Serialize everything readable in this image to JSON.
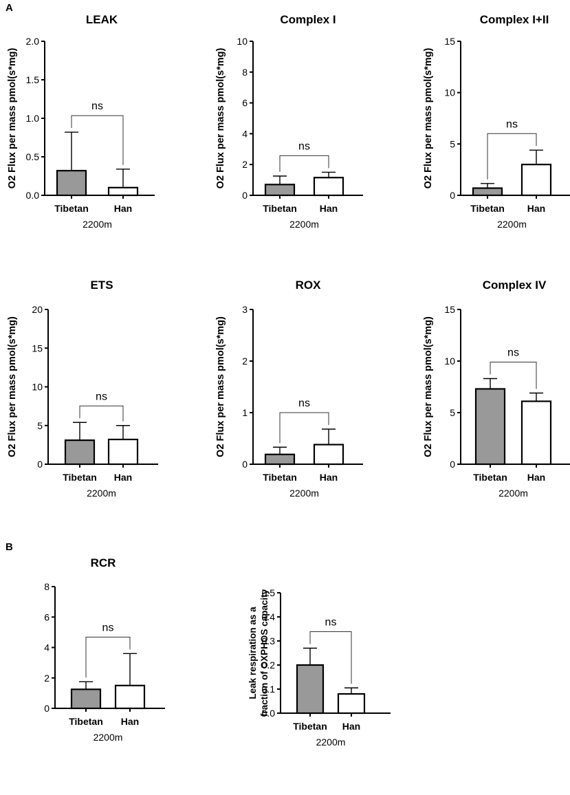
{
  "panel_labels": [
    "A",
    "B"
  ],
  "colors": {
    "tibetan_fill": "#999999",
    "han_fill": "#ffffff",
    "stroke": "#000000"
  },
  "chart_data": [
    {
      "type": "bar",
      "title": "LEAK",
      "ylabel": "O2 Flux per mass pmol(s*mg)",
      "xlabel": "2200m",
      "categories": [
        "Tibetan",
        "Han"
      ],
      "values": [
        0.32,
        0.1
      ],
      "errors": [
        0.5,
        0.24
      ],
      "ylim": [
        0,
        2.0
      ],
      "yticks": [
        "0.0",
        "0.5",
        "1.0",
        "1.5",
        "2.0"
      ],
      "significance": "ns"
    },
    {
      "type": "bar",
      "title": "Complex I",
      "ylabel": "O2 Flux per mass pmol(s*mg)",
      "xlabel": "2200m",
      "categories": [
        "Tibetan",
        "Han"
      ],
      "values": [
        0.7,
        1.15
      ],
      "errors": [
        0.55,
        0.35
      ],
      "ylim": [
        0,
        10
      ],
      "yticks": [
        "0",
        "2",
        "4",
        "6",
        "8",
        "10"
      ],
      "significance": "ns"
    },
    {
      "type": "bar",
      "title": "Complex I+II",
      "ylabel": "O2 Flux per mass pmol(s*mg)",
      "xlabel": "2200m",
      "categories": [
        "Tibetan",
        "Han"
      ],
      "values": [
        0.7,
        3.0
      ],
      "errors": [
        0.45,
        1.4
      ],
      "ylim": [
        0,
        15
      ],
      "yticks": [
        "0",
        "5",
        "10",
        "15"
      ],
      "significance": "ns"
    },
    {
      "type": "bar",
      "title": "ETS",
      "ylabel": "O2 Flux per mass pmol(s*mg)",
      "xlabel": "2200m",
      "categories": [
        "Tibetan",
        "Han"
      ],
      "values": [
        3.1,
        3.2
      ],
      "errors": [
        2.3,
        1.8
      ],
      "ylim": [
        0,
        20
      ],
      "yticks": [
        "0",
        "5",
        "10",
        "15",
        "20"
      ],
      "significance": "ns"
    },
    {
      "type": "bar",
      "title": "ROX",
      "ylabel": "O2 Flux per mass pmol(s*mg)",
      "xlabel": "2200m",
      "categories": [
        "Tibetan",
        "Han"
      ],
      "values": [
        0.19,
        0.38
      ],
      "errors": [
        0.14,
        0.3
      ],
      "ylim": [
        0,
        3
      ],
      "yticks": [
        "0",
        "1",
        "2",
        "3"
      ],
      "significance": "ns"
    },
    {
      "type": "bar",
      "title": "Complex IV",
      "ylabel": "O2 Flux per mass pmol(s*mg)",
      "xlabel": "2200m",
      "categories": [
        "Tibetan",
        "Han"
      ],
      "values": [
        7.3,
        6.1
      ],
      "errors": [
        1.0,
        0.8
      ],
      "ylim": [
        0,
        15
      ],
      "yticks": [
        "0",
        "5",
        "10",
        "15"
      ],
      "significance": "ns"
    },
    {
      "type": "bar",
      "title": "RCR",
      "ylabel": "",
      "xlabel": "2200m",
      "categories": [
        "Tibetan",
        "Han"
      ],
      "values": [
        1.25,
        1.5
      ],
      "errors": [
        0.5,
        2.1
      ],
      "ylim": [
        0,
        8
      ],
      "yticks": [
        "0",
        "2",
        "4",
        "6",
        "8"
      ],
      "significance": "ns"
    },
    {
      "type": "bar",
      "title": "",
      "ylabel": "Leak respiration as a fraction of OXPHOS capacity",
      "ylabel_lines": [
        "Leak respiration as a",
        "fraction of OXPHOS capacity"
      ],
      "xlabel": "2200m",
      "categories": [
        "Tibetan",
        "Han"
      ],
      "values": [
        0.2,
        0.08
      ],
      "errors": [
        0.07,
        0.025
      ],
      "ylim": [
        0,
        0.5
      ],
      "yticks": [
        "0.0",
        "0.1",
        "0.2",
        "0.3",
        "0.4",
        "0.5"
      ],
      "significance": "ns"
    }
  ]
}
